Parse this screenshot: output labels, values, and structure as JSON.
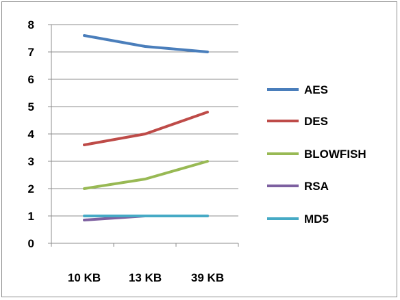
{
  "chart_data": {
    "type": "line",
    "title": "",
    "xlabel": "",
    "ylabel": "",
    "categories": [
      "10 KB",
      "13 KB",
      "39 KB"
    ],
    "ylim": [
      0,
      8
    ],
    "yticks": [
      "0",
      "1",
      "2",
      "3",
      "4",
      "5",
      "6",
      "7",
      "8"
    ],
    "grid": true,
    "legend_position": "right",
    "series": [
      {
        "name": "AES",
        "color": "#4a7ebb",
        "values": [
          7.6,
          7.2,
          7.0
        ]
      },
      {
        "name": "DES",
        "color": "#be4b48",
        "values": [
          3.6,
          4.0,
          4.8
        ]
      },
      {
        "name": "BLOWFISH",
        "color": "#98b954",
        "values": [
          2.0,
          2.35,
          3.0
        ]
      },
      {
        "name": "RSA",
        "color": "#7d60a0",
        "values": [
          0.85,
          1.0,
          1.0
        ]
      },
      {
        "name": "MD5",
        "color": "#46aac5",
        "values": [
          1.0,
          1.0,
          1.0
        ]
      }
    ]
  }
}
